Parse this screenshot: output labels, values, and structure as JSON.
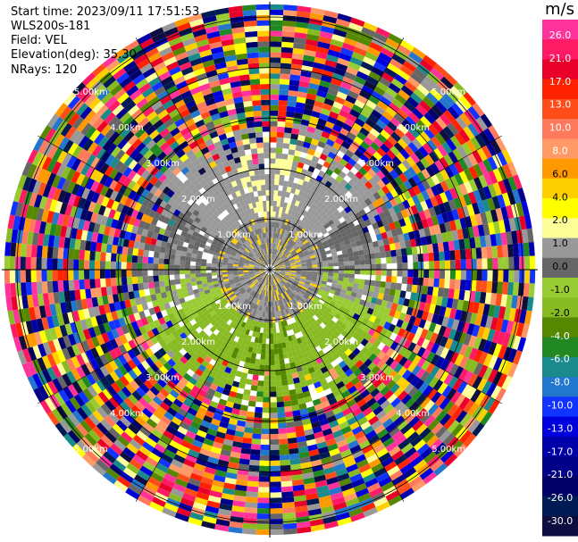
{
  "header": {
    "start_time": "Start time: 2023/09/11 17:51:53",
    "instrument": "WLS200s-181",
    "field": "Field: VEL",
    "elevation": "Elevation(deg): 35.30",
    "nrays": "NRays: 120"
  },
  "chart_data": {
    "type": "polar-ppi",
    "field": "VEL",
    "unit": "m/s",
    "nrays": 120,
    "elevation_deg": 35.3,
    "range_rings_km": [
      1.0,
      2.0,
      3.0,
      4.0,
      5.0
    ],
    "ring_labels": [
      "1.00km",
      "2.00km",
      "3.00km",
      "4.00km",
      "5.00km"
    ],
    "max_range_km": 5.3,
    "colorbar": {
      "title": "m/s",
      "ticks": [
        "26.0",
        "21.0",
        "17.0",
        "13.0",
        "10.0",
        "8.0",
        "6.0",
        "4.0",
        "2.0",
        "1.0",
        "0.0",
        "-1.0",
        "-2.0",
        "-4.0",
        "-6.0",
        "-8.0",
        "-10.0",
        "-13.0",
        "-17.0",
        "-21.0",
        "-26.0",
        "-30.0"
      ],
      "colors": [
        "#ff3399",
        "#ff1a66",
        "#e8002b",
        "#ff2200",
        "#ff4d1a",
        "#ff7a5c",
        "#ff9966",
        "#ff9900",
        "#ffd000",
        "#ffff00",
        "#ffff99",
        "#999999",
        "#666666",
        "#99cc33",
        "#88bb22",
        "#558800",
        "#228822",
        "#1a8a8a",
        "#2277cc",
        "#1133ff",
        "#0000dd",
        "#0000aa",
        "#000088",
        "#000066",
        "#001a55",
        "#0d0d40"
      ],
      "min": -30.0,
      "max": 30.0
    },
    "velocity_pattern": {
      "inner_gray_radius_km": 1.1,
      "yellow_sector_center_deg": 0,
      "green_sector_center_deg": 180,
      "coherent_radius_km": 2.8
    }
  }
}
